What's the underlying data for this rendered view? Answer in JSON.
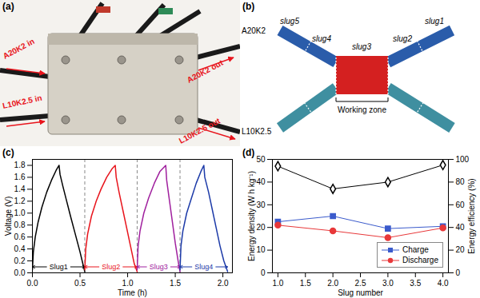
{
  "panels": {
    "a": {
      "label": "(a)",
      "annotations": [
        "A20K2 in",
        "A20K2 out",
        "L10K2.5 in",
        "L10K2.5 out"
      ]
    },
    "b": {
      "label": "(b)",
      "streams": [
        "A20K2",
        "L10K2.5"
      ],
      "slugs": [
        "slug5",
        "slug4",
        "slug3",
        "slug2",
        "slug1"
      ],
      "zone": "Working zone"
    }
  },
  "chart_data": [
    {
      "type": "line",
      "label": "(c)",
      "x_label": "Time (h)",
      "y_label": "Voltage (V)",
      "xlim": [
        0,
        2.1
      ],
      "xticks": [
        {
          "value": 0,
          "label": "0.0"
        },
        {
          "value": 0.5,
          "label": "0.5"
        },
        {
          "value": 1,
          "label": "1.0"
        },
        {
          "value": 1.5,
          "label": "1.5"
        },
        {
          "value": 2,
          "label": "2.0"
        }
      ],
      "ylim": [
        0,
        1.9
      ],
      "yticks": [
        {
          "value": 0,
          "label": "0.0"
        },
        {
          "value": 0.2,
          "label": "0.2"
        },
        {
          "value": 0.4,
          "label": "0.4"
        },
        {
          "value": 0.6,
          "label": "0.6"
        },
        {
          "value": 0.8,
          "label": "0.8"
        },
        {
          "value": 1,
          "label": "1.0"
        },
        {
          "value": 1.2,
          "label": "1.2"
        },
        {
          "value": 1.4,
          "label": "1.4"
        },
        {
          "value": 1.6,
          "label": "1.6"
        },
        {
          "value": 1.8,
          "label": "1.8"
        }
      ],
      "dividers": [
        0.55,
        1.1,
        1.55
      ],
      "label_y": 0.1,
      "series": [
        {
          "name": "Slug1",
          "color": "#000000",
          "span": [
            0,
            0.55
          ],
          "x": [
            0,
            0.01,
            0.03,
            0.06,
            0.1,
            0.15,
            0.2,
            0.25,
            0.28,
            0.29,
            0.32,
            0.36,
            0.4,
            0.45,
            0.5,
            0.53,
            0.55
          ],
          "values": [
            0.05,
            0.35,
            0.6,
            0.85,
            1.1,
            1.35,
            1.55,
            1.72,
            1.8,
            1.65,
            1.45,
            1.2,
            0.95,
            0.65,
            0.35,
            0.15,
            0.02
          ]
        },
        {
          "name": "Slug2",
          "color": "#e8141c",
          "span": [
            0.55,
            1.1
          ],
          "x": [
            0.55,
            0.56,
            0.58,
            0.62,
            0.67,
            0.72,
            0.78,
            0.84,
            0.87,
            0.88,
            0.91,
            0.95,
            0.99,
            1.03,
            1.07,
            1.1
          ],
          "values": [
            0.05,
            0.4,
            0.65,
            0.95,
            1.2,
            1.4,
            1.6,
            1.75,
            1.8,
            1.6,
            1.35,
            1.05,
            0.75,
            0.45,
            0.15,
            0.02
          ]
        },
        {
          "name": "Slug3",
          "color": "#a0209e",
          "span": [
            1.1,
            1.55
          ],
          "x": [
            1.1,
            1.11,
            1.13,
            1.17,
            1.22,
            1.28,
            1.34,
            1.4,
            1.41,
            1.44,
            1.47,
            1.5,
            1.53,
            1.55
          ],
          "values": [
            0.05,
            0.45,
            0.7,
            1.0,
            1.25,
            1.5,
            1.7,
            1.8,
            1.55,
            1.2,
            0.85,
            0.5,
            0.2,
            0.02
          ]
        },
        {
          "name": "Slug4",
          "color": "#1c3aa8",
          "span": [
            1.55,
            2.05
          ],
          "x": [
            1.55,
            1.56,
            1.58,
            1.62,
            1.67,
            1.72,
            1.77,
            1.8,
            1.81,
            1.85,
            1.89,
            1.93,
            1.97,
            2.01,
            2.05
          ],
          "values": [
            0.05,
            0.45,
            0.7,
            1.0,
            1.25,
            1.5,
            1.7,
            1.8,
            1.6,
            1.35,
            1.05,
            0.75,
            0.45,
            0.2,
            0.02
          ]
        }
      ]
    },
    {
      "type": "line",
      "label": "(d)",
      "x_label": "Slug number",
      "y_label": "Energy density (W h kg⁻¹)",
      "y2_label": "Energy efficiency (%)",
      "x": [
        1,
        2,
        3,
        4
      ],
      "xlim": [
        0.9,
        4.1
      ],
      "xticks": [
        {
          "value": 1,
          "label": "1.0"
        },
        {
          "value": 1.5,
          "label": "1.5"
        },
        {
          "value": 2,
          "label": "2.0"
        },
        {
          "value": 2.5,
          "label": "2.5"
        },
        {
          "value": 3,
          "label": "3.0"
        },
        {
          "value": 3.5,
          "label": "3.5"
        },
        {
          "value": 4,
          "label": "4.0"
        }
      ],
      "ylim": [
        0,
        50
      ],
      "yticks": [
        0,
        10,
        20,
        30,
        40,
        50
      ],
      "y2lim": [
        0,
        100
      ],
      "y2ticks": [
        0,
        20,
        40,
        60,
        80,
        100
      ],
      "legend": "lower right",
      "series": [
        {
          "name": "Charge",
          "color": "#3b5bcc",
          "marker": "square",
          "values": [
            22.5,
            25,
            19.5,
            20.5
          ]
        },
        {
          "name": "Discharge",
          "color": "#e8383a",
          "marker": "circle",
          "values": [
            21,
            18.5,
            15.5,
            19.8
          ]
        },
        {
          "color": "#000000",
          "marker": "open diamond",
          "axis": "y2",
          "values": [
            94,
            74,
            80,
            95
          ]
        }
      ]
    }
  ]
}
